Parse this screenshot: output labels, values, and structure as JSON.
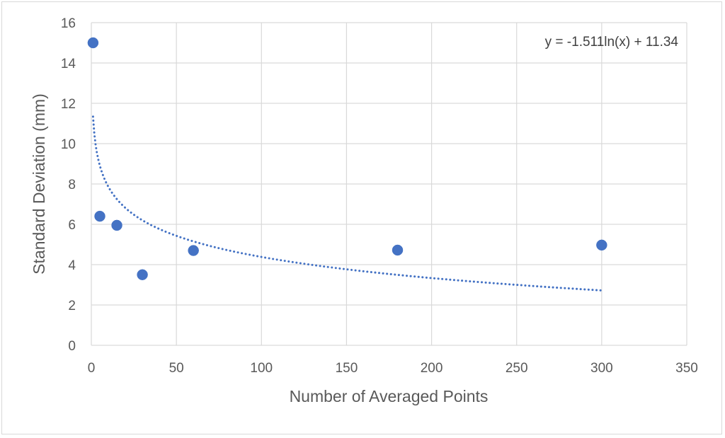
{
  "chart_data": {
    "type": "scatter",
    "title": "",
    "xlabel": "Number of Averaged Points",
    "ylabel": "Standard Deviation (mm)",
    "xlim": [
      0,
      350
    ],
    "ylim": [
      0,
      16
    ],
    "x_ticks": [
      0,
      50,
      100,
      150,
      200,
      250,
      300,
      350
    ],
    "y_ticks": [
      0,
      2,
      4,
      6,
      8,
      10,
      12,
      14,
      16
    ],
    "x_tick_labels": [
      "0",
      "50",
      "100",
      "150",
      "200",
      "250",
      "300",
      "350"
    ],
    "y_tick_labels": [
      "0",
      "2",
      "4",
      "6",
      "8",
      "10",
      "12",
      "14",
      "16"
    ],
    "grid": true,
    "legend": "none",
    "points": [
      {
        "x": 1,
        "y": 15.0
      },
      {
        "x": 5,
        "y": 6.4
      },
      {
        "x": 15,
        "y": 5.95
      },
      {
        "x": 30,
        "y": 3.5
      },
      {
        "x": 60,
        "y": 4.7
      },
      {
        "x": 180,
        "y": 4.72
      },
      {
        "x": 300,
        "y": 4.97
      }
    ],
    "trendline": {
      "type": "logarithmic",
      "a": -1.511,
      "b": 11.34,
      "x_range": [
        1,
        300
      ],
      "equation_label": "y = -1.511ln(x) + 11.34"
    },
    "colors": {
      "marker": "#4472c4",
      "trendline": "#4472c4",
      "grid": "#d9d9d9",
      "text": "#595959"
    }
  }
}
